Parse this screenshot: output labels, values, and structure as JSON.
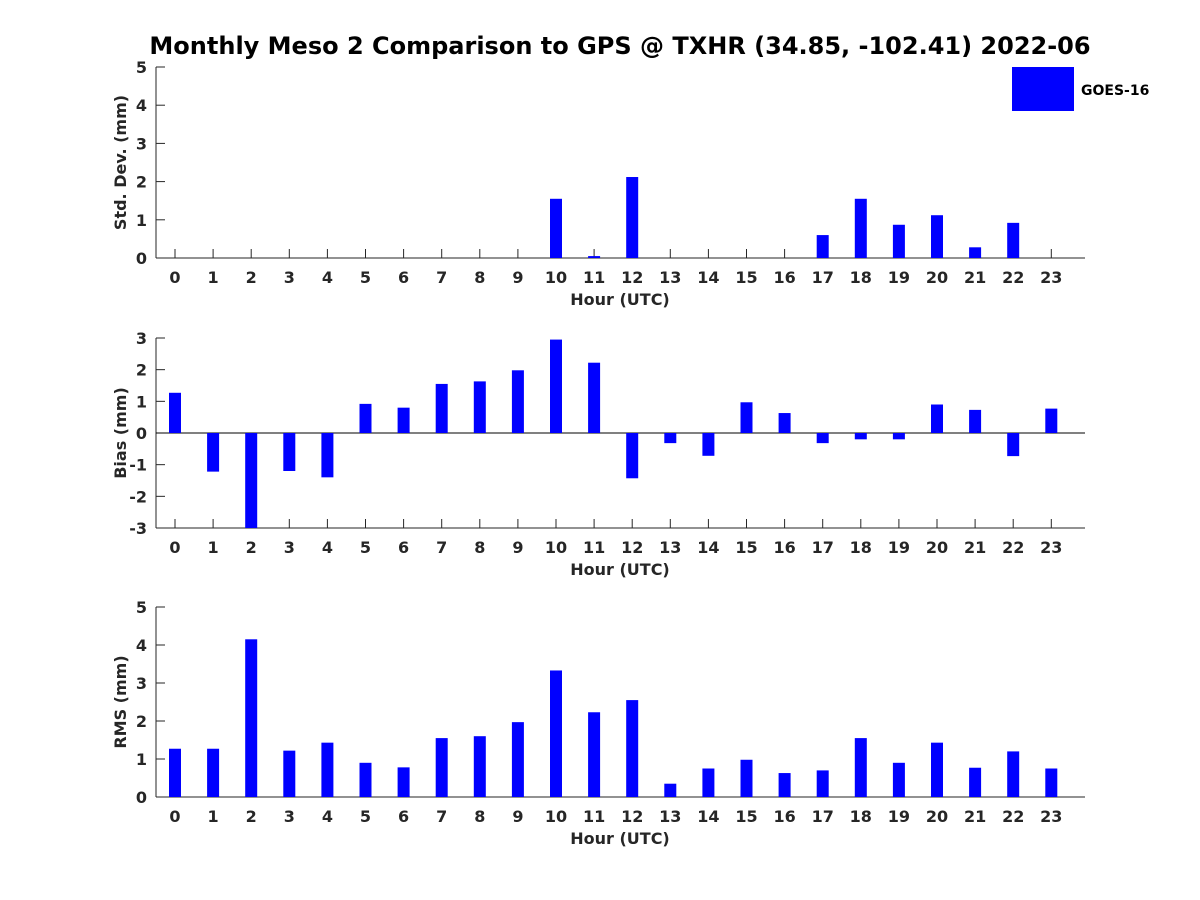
{
  "title": "Monthly Meso 2 Comparison to GPS @ TXHR (34.85, -102.41) 2022-06",
  "bar_color": "#0000ff",
  "legend": {
    "label": "GOES-16",
    "placement": "top-right"
  },
  "chart_data": [
    {
      "type": "bar",
      "ylabel": "Std. Dev. (mm)",
      "xlabel": "Hour (UTC)",
      "categories": [
        "0",
        "1",
        "2",
        "3",
        "4",
        "5",
        "6",
        "7",
        "8",
        "9",
        "10",
        "11",
        "12",
        "13",
        "14",
        "15",
        "16",
        "17",
        "18",
        "19",
        "20",
        "21",
        "22",
        "23"
      ],
      "series": [
        {
          "name": "GOES-16",
          "values": [
            0,
            0,
            0,
            0,
            0,
            0,
            0,
            0,
            0,
            0,
            1.55,
            0.05,
            2.12,
            0,
            0,
            0,
            0,
            0.6,
            1.55,
            0.87,
            1.12,
            0.28,
            0.92,
            0
          ]
        }
      ],
      "ylim": [
        0,
        5
      ],
      "yticks": [
        0,
        1,
        2,
        3,
        4,
        5
      ]
    },
    {
      "type": "bar",
      "ylabel": "Bias (mm)",
      "xlabel": "Hour (UTC)",
      "categories": [
        "0",
        "1",
        "2",
        "3",
        "4",
        "5",
        "6",
        "7",
        "8",
        "9",
        "10",
        "11",
        "12",
        "13",
        "14",
        "15",
        "16",
        "17",
        "18",
        "19",
        "20",
        "21",
        "22",
        "23"
      ],
      "series": [
        {
          "name": "GOES-16",
          "values": [
            1.27,
            -1.22,
            -3.05,
            -1.2,
            -1.4,
            0.92,
            0.8,
            1.55,
            1.63,
            1.98,
            2.95,
            2.22,
            -1.43,
            -0.32,
            -0.72,
            0.97,
            0.63,
            -0.32,
            -0.2,
            -0.2,
            0.9,
            0.73,
            -0.73,
            0.77
          ]
        }
      ],
      "ylim": [
        -3,
        3
      ],
      "yticks": [
        -3,
        -2,
        -1,
        0,
        1,
        2,
        3
      ]
    },
    {
      "type": "bar",
      "ylabel": "RMS (mm)",
      "xlabel": "Hour (UTC)",
      "categories": [
        "0",
        "1",
        "2",
        "3",
        "4",
        "5",
        "6",
        "7",
        "8",
        "9",
        "10",
        "11",
        "12",
        "13",
        "14",
        "15",
        "16",
        "17",
        "18",
        "19",
        "20",
        "21",
        "22",
        "23"
      ],
      "series": [
        {
          "name": "GOES-16",
          "values": [
            1.27,
            1.27,
            4.15,
            1.22,
            1.43,
            0.9,
            0.78,
            1.55,
            1.6,
            1.97,
            3.33,
            2.23,
            2.55,
            0.35,
            0.75,
            0.98,
            0.63,
            0.7,
            1.55,
            0.9,
            1.43,
            0.77,
            1.2,
            0.75
          ]
        }
      ],
      "ylim": [
        0,
        5
      ],
      "yticks": [
        0,
        1,
        2,
        3,
        4,
        5
      ]
    }
  ]
}
